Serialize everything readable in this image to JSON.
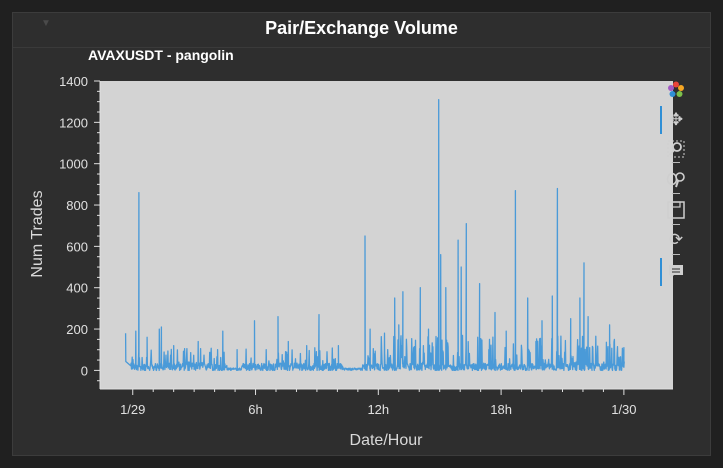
{
  "panel": {
    "title": "Pair/Exchange Volume"
  },
  "chart_data": {
    "type": "line",
    "title": "AVAXUSDT - pangolin",
    "xlabel": "Date/Hour",
    "ylabel": "Num Trades",
    "ylim": [
      -90,
      1400
    ],
    "xlim": [
      -1.6,
      26.4
    ],
    "y_ticks": [
      0,
      200,
      400,
      600,
      800,
      1000,
      1200,
      1400
    ],
    "x_ticks": [
      {
        "value": 0,
        "label": "1/29"
      },
      {
        "value": 6,
        "label": "6h"
      },
      {
        "value": 12,
        "label": "12h"
      },
      {
        "value": 18,
        "label": "18h"
      },
      {
        "value": 24,
        "label": "1/30"
      }
    ],
    "grid": false,
    "legend": "none",
    "series_color": "#4a9ad8",
    "plot_bg": "#d3d3d3",
    "range_hours": [
      0,
      24
    ],
    "peaks": [
      [
        -0.35,
        180
      ],
      [
        0.15,
        190
      ],
      [
        0.3,
        860
      ],
      [
        0.7,
        160
      ],
      [
        1.3,
        200
      ],
      [
        1.4,
        210
      ],
      [
        2.0,
        120
      ],
      [
        3.2,
        140
      ],
      [
        4.4,
        190
      ],
      [
        5.1,
        100
      ],
      [
        5.95,
        240
      ],
      [
        7.1,
        260
      ],
      [
        7.6,
        140
      ],
      [
        8.5,
        120
      ],
      [
        9.1,
        270
      ],
      [
        10.05,
        120
      ],
      [
        11.35,
        650
      ],
      [
        11.6,
        200
      ],
      [
        12.3,
        180
      ],
      [
        12.8,
        350
      ],
      [
        13.0,
        220
      ],
      [
        13.2,
        380
      ],
      [
        14.05,
        400
      ],
      [
        14.45,
        200
      ],
      [
        14.95,
        1310
      ],
      [
        15.05,
        560
      ],
      [
        15.3,
        400
      ],
      [
        15.9,
        630
      ],
      [
        16.05,
        500
      ],
      [
        16.3,
        710
      ],
      [
        16.95,
        420
      ],
      [
        17.4,
        100
      ],
      [
        17.7,
        280
      ],
      [
        18.25,
        190
      ],
      [
        18.7,
        870
      ],
      [
        19.3,
        350
      ],
      [
        19.7,
        140
      ],
      [
        20.0,
        240
      ],
      [
        20.5,
        360
      ],
      [
        20.75,
        880
      ],
      [
        21.4,
        250
      ],
      [
        21.85,
        350
      ],
      [
        22.05,
        520
      ],
      [
        22.25,
        260
      ],
      [
        23.3,
        220
      ],
      [
        24.0,
        110
      ]
    ]
  },
  "toolbar": {
    "tools": [
      {
        "name": "bokeh-logo-icon",
        "glyph": "",
        "active": false
      },
      {
        "name": "pan-tool-icon",
        "glyph": "✥",
        "active": true
      },
      {
        "name": "box-zoom-tool-icon",
        "glyph": "⌕",
        "active": false
      },
      {
        "name": "wheel-zoom-tool-icon",
        "glyph": "⚲",
        "active": false
      },
      {
        "name": "save-tool-icon",
        "glyph": "🖫",
        "active": false
      },
      {
        "name": "reset-tool-icon",
        "glyph": "⟳",
        "active": false
      },
      {
        "name": "hover-tool-icon",
        "glyph": "🗨",
        "active": true
      }
    ]
  }
}
